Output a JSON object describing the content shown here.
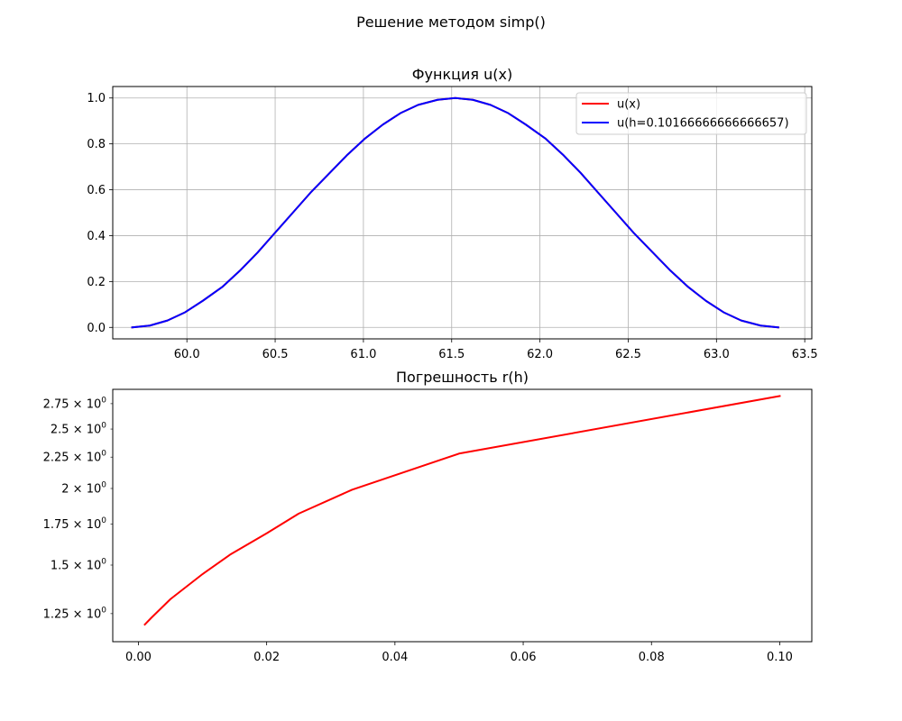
{
  "figure": {
    "suptitle": "Решение методом simp()"
  },
  "chart_data": [
    {
      "type": "line",
      "title": "Функция u(x)",
      "xlabel": "",
      "ylabel": "",
      "xlim": [
        59.58,
        63.54
      ],
      "ylim": [
        -0.05,
        1.05
      ],
      "xticks": [
        "60.0",
        "60.5",
        "61.0",
        "61.5",
        "62.0",
        "62.5",
        "63.0",
        "63.5"
      ],
      "yticks": [
        "0.0",
        "0.2",
        "0.4",
        "0.6",
        "0.8",
        "1.0"
      ],
      "grid": true,
      "legend_position": "upper right",
      "x": [
        59.69,
        59.79,
        59.89,
        59.99,
        60.09,
        60.2,
        60.3,
        60.4,
        60.5,
        60.6,
        60.7,
        60.81,
        60.91,
        61.01,
        61.11,
        61.21,
        61.31,
        61.42,
        61.52,
        61.62,
        61.72,
        61.82,
        61.92,
        62.03,
        62.13,
        62.23,
        62.33,
        62.43,
        62.53,
        62.64,
        62.74,
        62.84,
        62.94,
        63.04,
        63.14,
        63.25,
        63.35
      ],
      "series": [
        {
          "name": "u(x)",
          "color": "#ff0000",
          "values": [
            0.0,
            0.008,
            0.03,
            0.066,
            0.116,
            0.176,
            0.247,
            0.326,
            0.413,
            0.5,
            0.587,
            0.674,
            0.753,
            0.824,
            0.884,
            0.934,
            0.97,
            0.992,
            1.0,
            0.992,
            0.97,
            0.934,
            0.884,
            0.824,
            0.753,
            0.674,
            0.587,
            0.5,
            0.413,
            0.326,
            0.247,
            0.176,
            0.116,
            0.066,
            0.03,
            0.008,
            0.0
          ]
        },
        {
          "name": "u(h=0.10166666666666657)",
          "color": "#0000ff",
          "values": [
            0.0,
            0.008,
            0.03,
            0.066,
            0.116,
            0.176,
            0.247,
            0.326,
            0.413,
            0.5,
            0.587,
            0.674,
            0.753,
            0.824,
            0.884,
            0.934,
            0.97,
            0.992,
            1.0,
            0.992,
            0.97,
            0.934,
            0.884,
            0.824,
            0.753,
            0.674,
            0.587,
            0.5,
            0.413,
            0.326,
            0.247,
            0.176,
            0.116,
            0.066,
            0.03,
            0.008,
            0.0
          ]
        }
      ]
    },
    {
      "type": "line",
      "title": "Погрешность r(h)",
      "xlabel": "",
      "ylabel": "",
      "yscale": "log",
      "xlim": [
        -0.004,
        0.105
      ],
      "ylim": [
        1.125,
        2.902
      ],
      "xticks": [
        "0.00",
        "0.02",
        "0.04",
        "0.06",
        "0.08",
        "0.10"
      ],
      "yticks": [
        {
          "mantissa": "1.25",
          "value": 1.25
        },
        {
          "mantissa": "1.5",
          "value": 1.5
        },
        {
          "mantissa": "1.75",
          "value": 1.75
        },
        {
          "mantissa": "2",
          "value": 2.0
        },
        {
          "mantissa": "2.25",
          "value": 2.25
        },
        {
          "mantissa": "2.5",
          "value": 2.5
        },
        {
          "mantissa": "2.75",
          "value": 2.75
        }
      ],
      "tick_base": "× 10",
      "tick_exponent": "0",
      "grid": false,
      "x": [
        0.001,
        0.002,
        0.005,
        0.01,
        0.0143,
        0.02,
        0.025,
        0.0333,
        0.05,
        0.1
      ],
      "series": [
        {
          "color": "#ff0000",
          "values": [
            1.2,
            1.23,
            1.32,
            1.45,
            1.56,
            1.69,
            1.82,
            1.99,
            2.28,
            2.83
          ]
        }
      ]
    }
  ]
}
